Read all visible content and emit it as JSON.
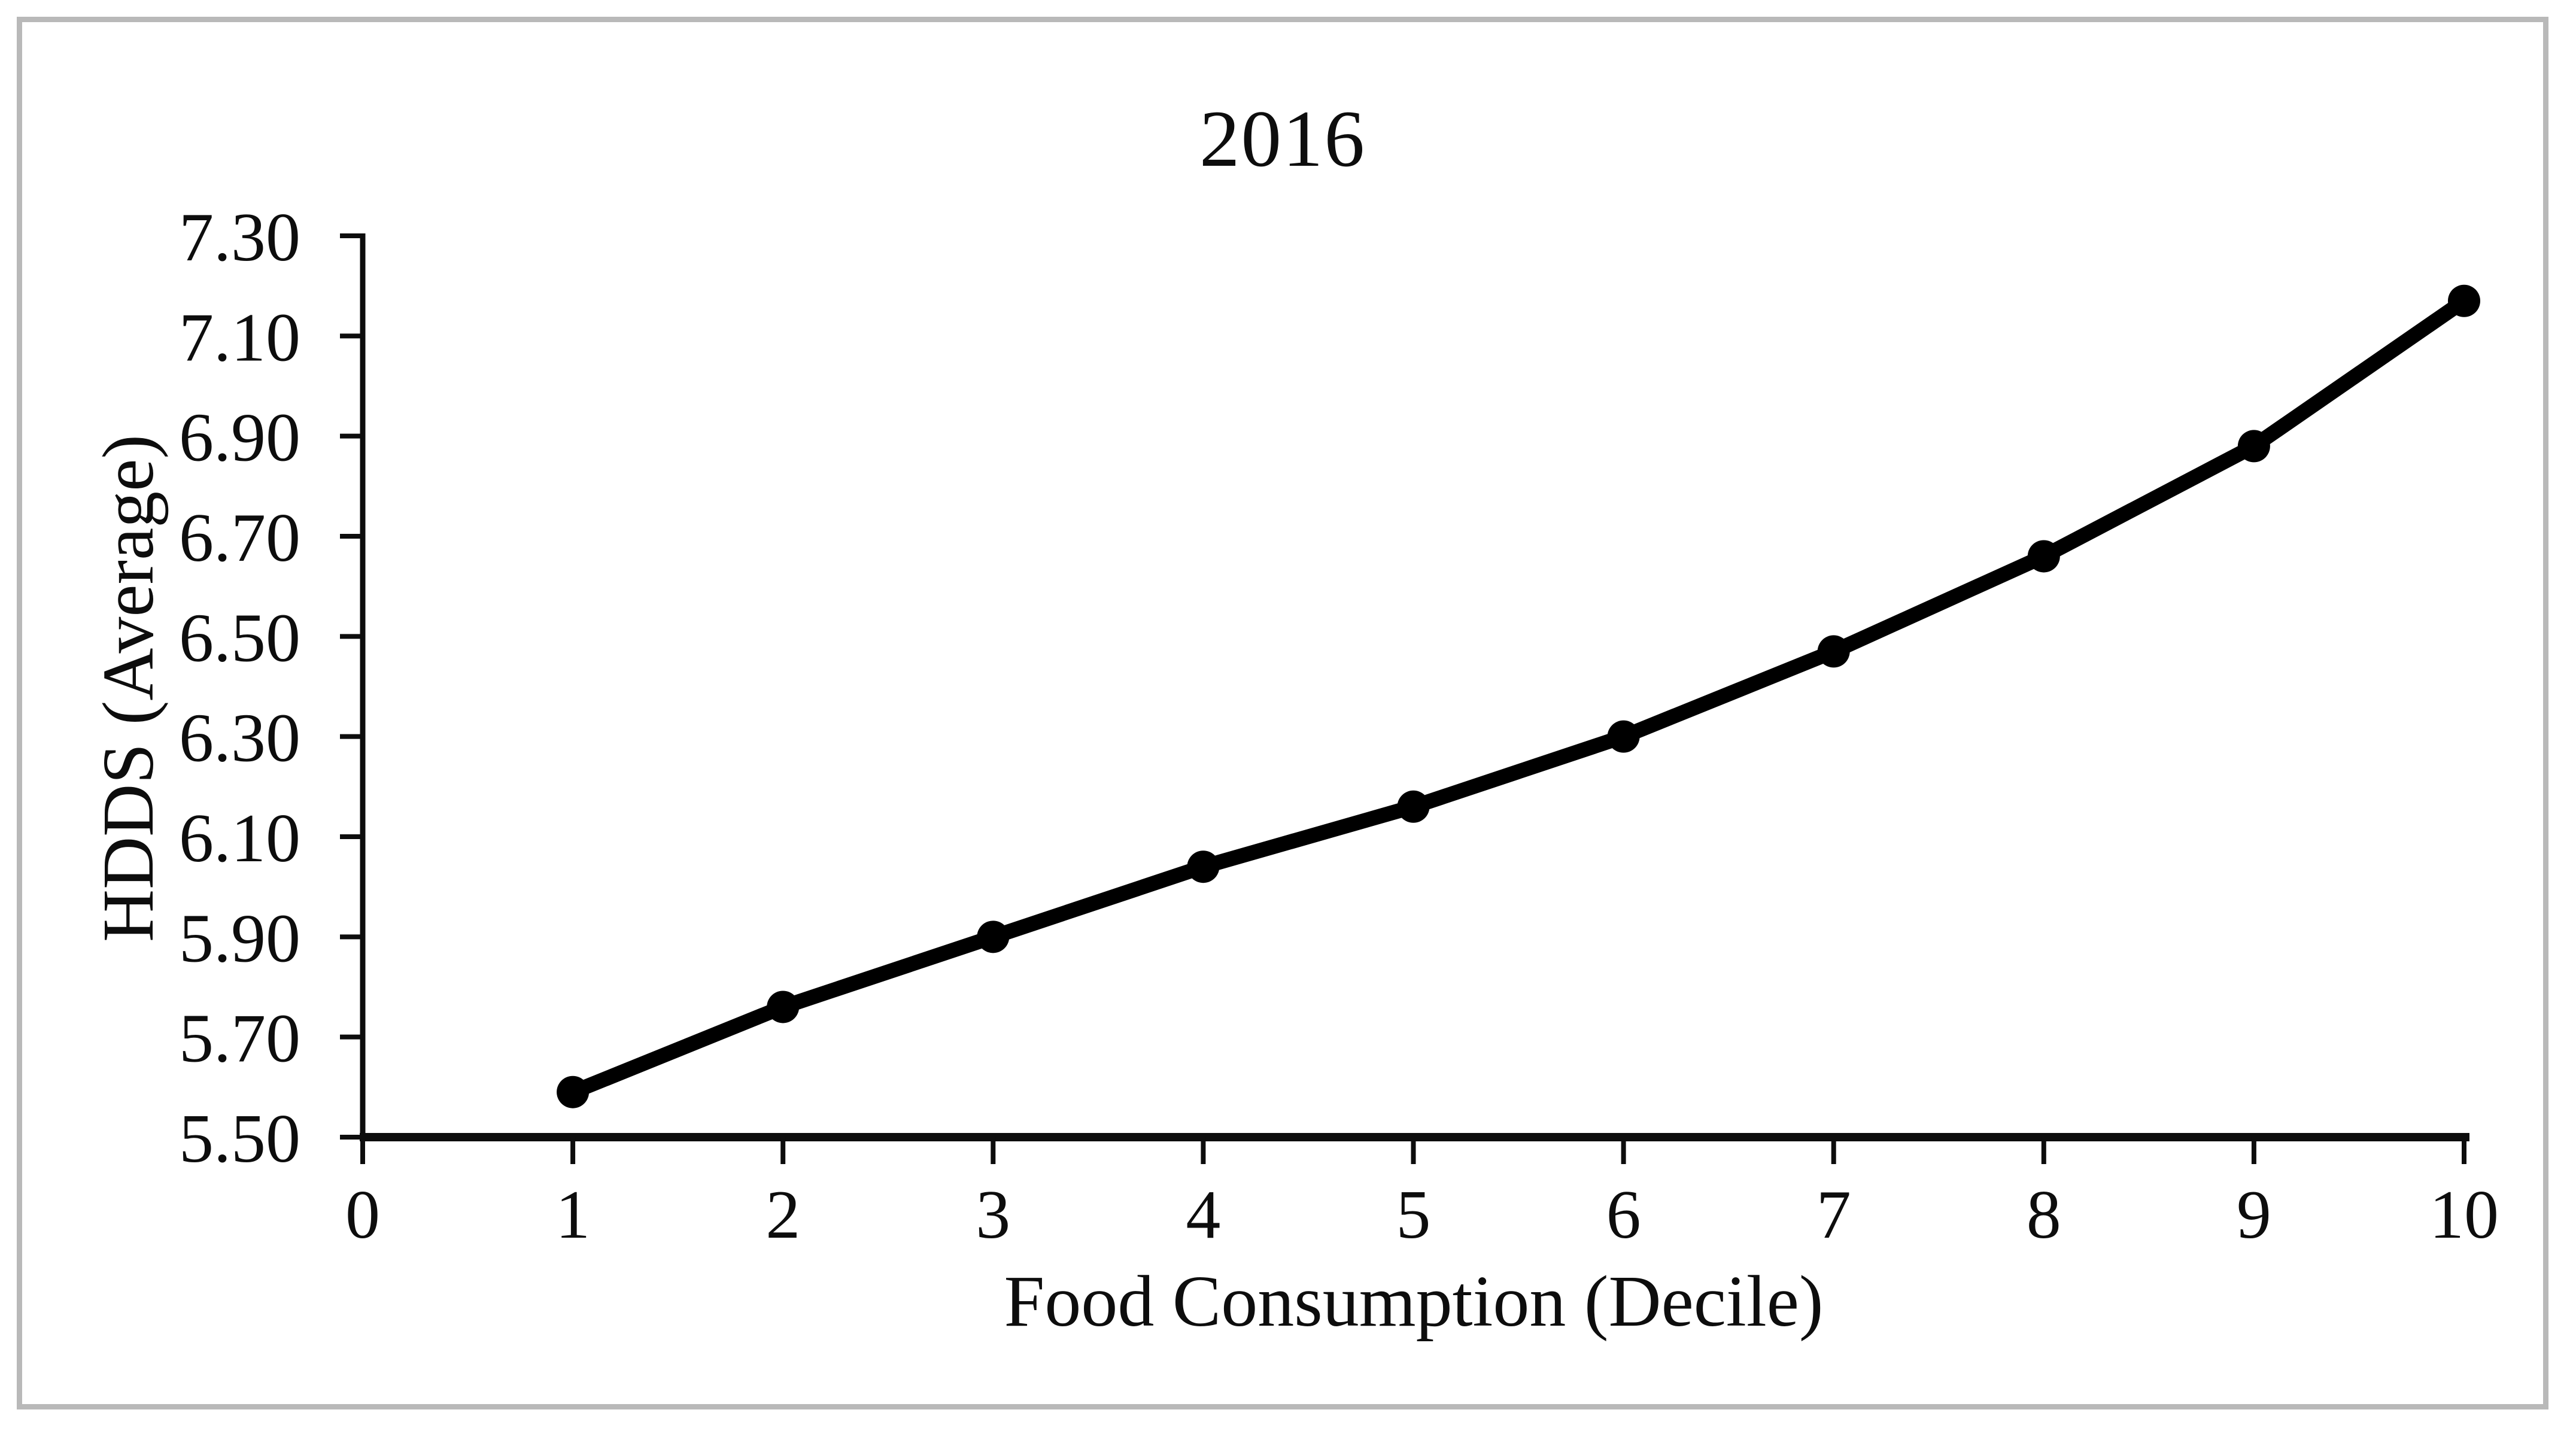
{
  "chart_data": {
    "type": "line",
    "title": "2016",
    "xlabel": "Food Consumption (Decile)",
    "ylabel": "HDDS (Average)",
    "x": [
      1,
      2,
      3,
      4,
      5,
      6,
      7,
      8,
      9,
      10
    ],
    "y": [
      5.59,
      5.76,
      5.9,
      6.04,
      6.16,
      6.3,
      6.47,
      6.66,
      6.88,
      7.17
    ],
    "x_tick_labels": [
      "0",
      "1",
      "2",
      "3",
      "4",
      "5",
      "6",
      "7",
      "8",
      "9",
      "10"
    ],
    "y_tick_labels": [
      "5.50",
      "5.70",
      "5.90",
      "6.10",
      "6.30",
      "6.50",
      "6.70",
      "6.90",
      "7.10",
      "7.30"
    ],
    "xlim": [
      0,
      10
    ],
    "ylim": [
      5.5,
      7.3
    ],
    "y_tick_step": 0.2,
    "grid": false,
    "legend": "none",
    "line_color": "#000000",
    "marker": "filled-circle",
    "frame_border_color": "#b9b9b9"
  }
}
